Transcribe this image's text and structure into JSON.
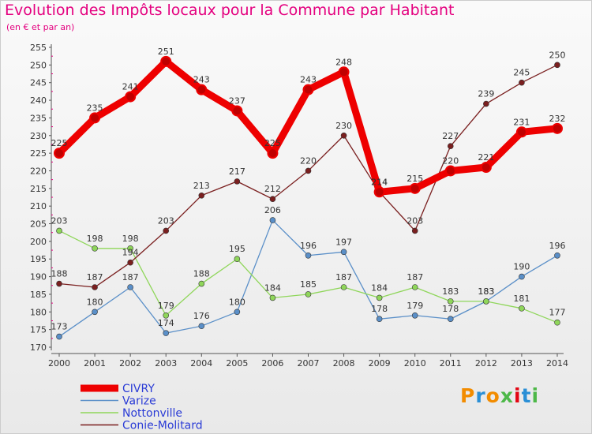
{
  "header": {
    "title": "Evolution des Impôts locaux pour la Commune par Habitant",
    "subtitle": "(en € et par an)"
  },
  "logo": {
    "text": "Proxiti",
    "colors": [
      "#f28c00",
      "#2a8fd6",
      "#f28c00",
      "#4db848",
      "#e30613",
      "#2a8fd6",
      "#4db848"
    ]
  },
  "chart_data": {
    "type": "line",
    "title": "Evolution des Impôts locaux pour la Commune par Habitant",
    "subtitle": "(en € et par an)",
    "x": [
      "2000",
      "2001",
      "2002",
      "2003",
      "2004",
      "2005",
      "2006",
      "2007",
      "2008",
      "2009",
      "2010",
      "2011",
      "2012",
      "2013",
      "2014"
    ],
    "ylim": [
      170,
      255
    ],
    "yticks": [
      170,
      175,
      180,
      185,
      190,
      195,
      200,
      205,
      210,
      215,
      220,
      225,
      230,
      235,
      240,
      245,
      250,
      255
    ],
    "grid": false,
    "legend_position": "bottom-left",
    "series": [
      {
        "name": "CIVRY",
        "color": "#ee0000",
        "values": [
          225,
          235,
          241,
          251,
          243,
          237,
          225,
          243,
          248,
          214,
          215,
          220,
          221,
          231,
          232
        ],
        "labels": [
          "225",
          "235",
          "241",
          "251",
          "243",
          "237",
          "225",
          "243",
          "248",
          "214",
          "215",
          "220",
          "221",
          "231",
          "232"
        ]
      },
      {
        "name": "Varize",
        "color": "#5a8fc8",
        "values": [
          173,
          180,
          187,
          174,
          176,
          180,
          206,
          196,
          197,
          178,
          179,
          178,
          183,
          190,
          196
        ],
        "labels": [
          "173",
          "180",
          "187",
          "174",
          "176",
          "180",
          "206",
          "196",
          "197",
          "178",
          "179",
          "178",
          "183",
          "190",
          "196"
        ]
      },
      {
        "name": "Nottonville",
        "color": "#8fd65a",
        "values": [
          203,
          198,
          198,
          179,
          188,
          195,
          184,
          185,
          187,
          184,
          187,
          183,
          183,
          181,
          177
        ],
        "labels": [
          "203",
          "198",
          "198",
          "179",
          "188",
          "195",
          "184",
          "185",
          "187",
          "184",
          "187",
          "183",
          "183",
          "181",
          "177"
        ]
      },
      {
        "name": "Conie-Molitard",
        "color": "#7a1f1f",
        "values": [
          188,
          187,
          194,
          203,
          213,
          217,
          212,
          220,
          230,
          214,
          203,
          227,
          239,
          245,
          250
        ],
        "labels": [
          "188",
          "187",
          "194",
          "203",
          "213",
          "217",
          "212",
          "220",
          "230",
          "214",
          "203",
          "227",
          "239",
          "245",
          "250"
        ]
      }
    ]
  }
}
